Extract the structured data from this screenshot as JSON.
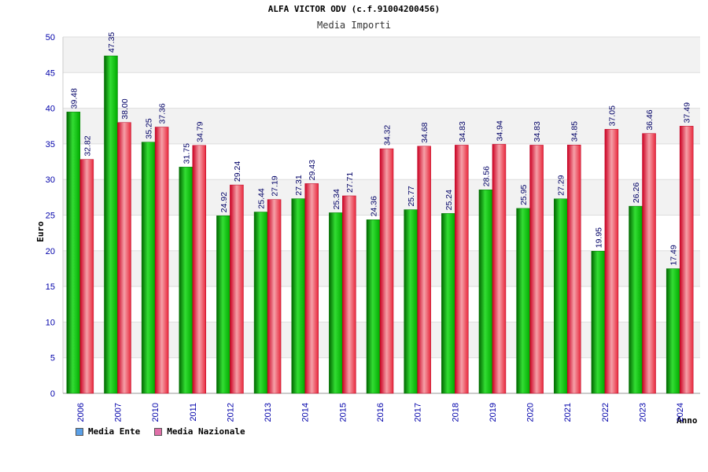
{
  "chart_data": {
    "type": "bar",
    "title": "ALFA VICTOR ODV (c.f.91004200456)",
    "subtitle": "Media Importi",
    "xlabel": "Anno",
    "ylabel": "Euro",
    "ylim": [
      0,
      50
    ],
    "yticks": [
      0,
      5,
      10,
      15,
      20,
      25,
      30,
      35,
      40,
      45,
      50
    ],
    "grid": true,
    "legend_position": "bottom-left",
    "categories": [
      "2006",
      "2007",
      "2010",
      "2011",
      "2012",
      "2013",
      "2014",
      "2015",
      "2016",
      "2017",
      "2018",
      "2019",
      "2020",
      "2021",
      "2022",
      "2023",
      "2024"
    ],
    "series": [
      {
        "name": "Media Ente",
        "color": "#00aa00",
        "values": [
          39.48,
          47.35,
          35.25,
          31.75,
          24.92,
          25.44,
          27.31,
          25.34,
          24.36,
          25.77,
          25.24,
          28.56,
          25.95,
          27.29,
          19.95,
          26.26,
          17.49
        ],
        "labels": [
          "39.48",
          "47.35",
          "35.25",
          "31.75",
          "24.92",
          "25.44",
          "27.31",
          "25.34",
          "24.36",
          "25.77",
          "25.24",
          "28.56",
          "25.95",
          "27.29",
          "19.95",
          "26.26",
          "17.49"
        ]
      },
      {
        "name": "Media Nazionale",
        "color": "#e8283c",
        "values": [
          32.82,
          38.0,
          37.36,
          34.79,
          29.24,
          27.19,
          29.43,
          27.71,
          34.32,
          34.68,
          34.83,
          34.94,
          34.83,
          34.85,
          37.05,
          36.46,
          37.49
        ],
        "labels": [
          "32.82",
          "38.00",
          "37.36",
          "34.79",
          "29.24",
          "27.19",
          "29.43",
          "27.71",
          "34.32",
          "34.68",
          "34.83",
          "34.94",
          "34.83",
          "34.85",
          "37.05",
          "36.46",
          "37.49"
        ]
      }
    ],
    "legend": [
      {
        "label": "Media Ente",
        "swatch_color": "#5aa0e8"
      },
      {
        "label": "Media Nazionale",
        "swatch_color": "#e070a8"
      }
    ]
  }
}
